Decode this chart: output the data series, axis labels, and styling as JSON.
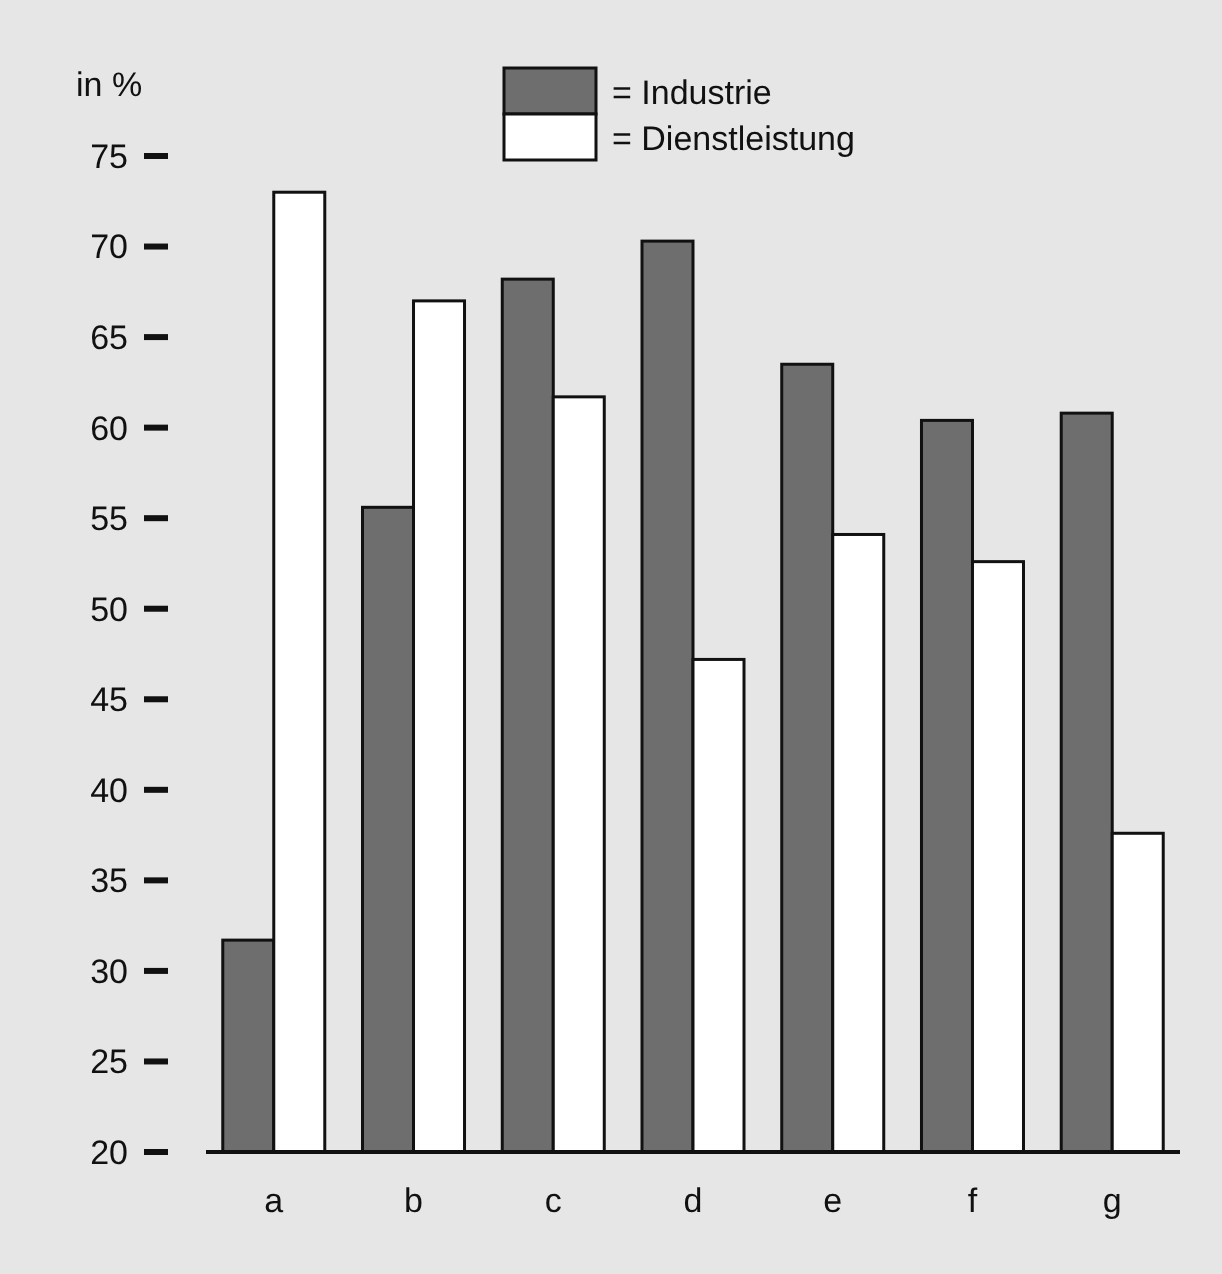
{
  "chart_data": {
    "type": "bar",
    "ylabel": "in %",
    "categories": [
      "a",
      "b",
      "c",
      "d",
      "e",
      "f",
      "g"
    ],
    "series": [
      {
        "name": "= Industrie",
        "color": "#6e6e6e",
        "values": [
          31.7,
          55.6,
          68.2,
          70.3,
          63.5,
          60.4,
          60.8
        ]
      },
      {
        "name": "= Dienstleistung",
        "color": "#ffffff",
        "values": [
          73,
          67,
          61.7,
          47.2,
          54.1,
          52.6,
          37.6
        ]
      }
    ],
    "ylim": [
      20,
      75
    ],
    "yticks": [
      20,
      25,
      30,
      35,
      40,
      45,
      50,
      55,
      60,
      65,
      70,
      75
    ],
    "grid": false,
    "legend": "top"
  }
}
